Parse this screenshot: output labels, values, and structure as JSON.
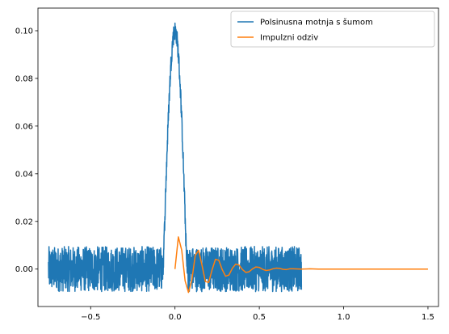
{
  "chart_data": {
    "type": "line",
    "title": "",
    "xlabel": "",
    "ylabel": "",
    "xlim": [
      -0.8125,
      1.5625
    ],
    "ylim": [
      -0.0157,
      0.1095
    ],
    "xticks": [
      -0.5,
      0.0,
      0.5,
      1.0,
      1.5
    ],
    "xtick_labels": [
      "−0.5",
      "0.0",
      "0.5",
      "1.0",
      "1.5"
    ],
    "yticks": [
      0.0,
      0.02,
      0.04,
      0.06,
      0.08,
      0.1
    ],
    "ytick_labels": [
      "0.00",
      "0.02",
      "0.04",
      "0.06",
      "0.08",
      "0.10"
    ],
    "grid": false,
    "legend": "top-right",
    "series": [
      {
        "name": "Polsinusna motnja s šumom",
        "color": "#1f77b4",
        "description_points": {
          "x_range": [
            -0.75,
            0.75
          ],
          "noise_band": [
            -0.0095,
            0.0095
          ],
          "pulse_start": -0.07,
          "pulse_end": 0.07,
          "pulse_peak": 0.1
        }
      },
      {
        "name": "Impulzni odziv",
        "color": "#ff7f0e",
        "x": [
          0.0,
          0.02,
          0.04,
          0.06,
          0.08,
          0.1,
          0.12,
          0.14,
          0.16,
          0.18,
          0.2,
          0.22,
          0.24,
          0.26,
          0.28,
          0.3,
          0.32,
          0.34,
          0.36,
          0.38,
          0.4,
          0.42,
          0.44,
          0.46,
          0.48,
          0.5,
          0.52,
          0.54,
          0.56,
          0.58,
          0.6,
          0.62,
          0.64,
          0.66,
          0.68,
          0.7,
          0.75,
          0.8,
          0.85,
          0.9,
          1.0,
          1.1,
          1.2,
          1.3,
          1.4,
          1.5
        ],
        "values": [
          0.0,
          0.0135,
          0.0079,
          -0.0049,
          -0.0098,
          -0.0046,
          0.0057,
          0.0079,
          0.0017,
          -0.0052,
          -0.0056,
          -0.0003,
          0.0041,
          0.0037,
          -0.0002,
          -0.003,
          -0.0025,
          0.0003,
          0.0021,
          0.0017,
          -0.0002,
          -0.0014,
          -0.0011,
          0.0001,
          0.0009,
          0.0007,
          -0.0001,
          -0.0006,
          -0.0004,
          0.0001,
          0.0004,
          0.0003,
          -0.0001,
          -0.0002,
          0.0001,
          0.0001,
          0.0,
          0.0001,
          0.0,
          0.0,
          0.0,
          0.0,
          0.0,
          0.0,
          0.0,
          0.0
        ]
      }
    ]
  }
}
